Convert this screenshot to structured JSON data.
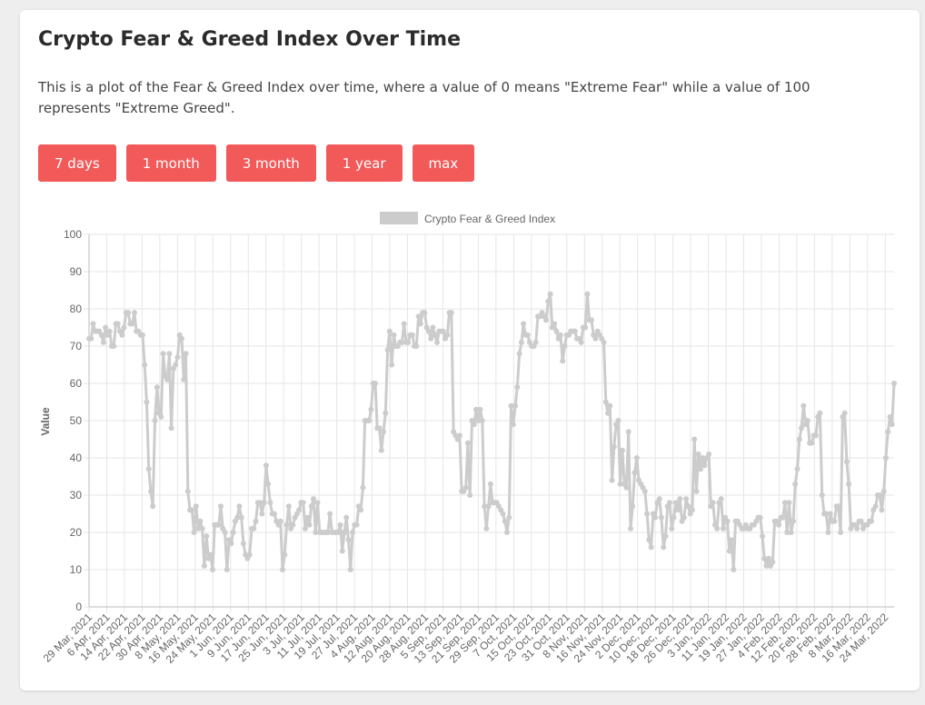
{
  "header": {
    "title": "Crypto Fear & Greed Index Over Time",
    "description": "This is a plot of the Fear & Greed Index over time, where a value of 0 means \"Extreme Fear\" while a value of 100 represents \"Extreme Greed\"."
  },
  "buttons": [
    {
      "label": "7 days"
    },
    {
      "label": "1 month"
    },
    {
      "label": "3 month"
    },
    {
      "label": "1 year"
    },
    {
      "label": "max"
    }
  ],
  "colors": {
    "button": "#f25a5a",
    "line": "#cccccc",
    "grid": "#e6e6e6"
  },
  "chart_data": {
    "type": "line",
    "title": "",
    "xlabel": "",
    "ylabel": "Value",
    "ylim": [
      0,
      100
    ],
    "yticks": [
      0,
      10,
      20,
      30,
      40,
      50,
      60,
      70,
      80,
      90,
      100
    ],
    "grid": true,
    "legend_position": "top-center",
    "x_tick_labels": [
      "29 Mar, 2021",
      "6 Apr, 2021",
      "14 Apr, 2021",
      "22 Apr, 2021",
      "30 Apr, 2021",
      "8 May, 2021",
      "16 May, 2021",
      "24 May, 2021",
      "1 Jun, 2021",
      "9 Jun, 2021",
      "17 Jun, 2021",
      "25 Jun, 2021",
      "3 Jul, 2021",
      "11 Jul, 2021",
      "19 Jul, 2021",
      "27 Jul, 2021",
      "4 Aug, 2021",
      "12 Aug, 2021",
      "20 Aug, 2021",
      "28 Aug, 2021",
      "5 Sep, 2021",
      "13 Sep, 2021",
      "21 Sep, 2021",
      "29 Sep, 2021",
      "7 Oct, 2021",
      "15 Oct, 2021",
      "23 Oct, 2021",
      "31 Oct, 2021",
      "8 Nov, 2021",
      "16 Nov, 2021",
      "24 Nov, 2021",
      "2 Dec, 2021",
      "10 Dec, 2021",
      "18 Dec, 2021",
      "26 Dec, 2021",
      "3 Jan, 2022",
      "11 Jan, 2022",
      "19 Jan, 2022",
      "27 Jan, 2022",
      "4 Feb, 2022",
      "12 Feb, 2022",
      "20 Feb, 2022",
      "28 Feb, 2022",
      "8 Mar, 2022",
      "16 Mar, 2022",
      "24 Mar, 2022"
    ],
    "series": [
      {
        "name": "Crypto Fear & Greed Index",
        "values": [
          72,
          72,
          76,
          74,
          74,
          74,
          73,
          71,
          75,
          73,
          74,
          70,
          70,
          76,
          76,
          74,
          73,
          75,
          79,
          79,
          76,
          76,
          79,
          74,
          74,
          73,
          73,
          65,
          55,
          37,
          31,
          27,
          50,
          59,
          52,
          51,
          68,
          62,
          61,
          68,
          48,
          64,
          65,
          67,
          73,
          72,
          61,
          68,
          31,
          26,
          26,
          20,
          27,
          21,
          23,
          21,
          11,
          19,
          13,
          14,
          10,
          22,
          22,
          22,
          27,
          21,
          20,
          10,
          18,
          17,
          20,
          23,
          24,
          27,
          24,
          17,
          14,
          13,
          14,
          21,
          21,
          23,
          28,
          28,
          25,
          28,
          38,
          33,
          28,
          25,
          25,
          23,
          22,
          23,
          10,
          14,
          22,
          27,
          21,
          22,
          24,
          25,
          26,
          28,
          28,
          21,
          24,
          22,
          27,
          29,
          20,
          28,
          20,
          20,
          20,
          20,
          20,
          25,
          20,
          20,
          20,
          20,
          22,
          15,
          20,
          24,
          18,
          10,
          20,
          22,
          22,
          27,
          26,
          32,
          50,
          50,
          50,
          53,
          60,
          60,
          48,
          48,
          42,
          47,
          52,
          69,
          74,
          65,
          73,
          70,
          70,
          71,
          71,
          76,
          71,
          71,
          73,
          73,
          70,
          70,
          78,
          76,
          79,
          79,
          75,
          74,
          72,
          75,
          73,
          71,
          74,
          74,
          74,
          72,
          73,
          79,
          79,
          47,
          46,
          45,
          46,
          31,
          31,
          32,
          44,
          30,
          50,
          49,
          53,
          50,
          53,
          50,
          27,
          21,
          27,
          33,
          28,
          28,
          28,
          27,
          26,
          25,
          23,
          20,
          24,
          54,
          49,
          54,
          59,
          68,
          71,
          76,
          73,
          73,
          71,
          70,
          70,
          71,
          78,
          78,
          79,
          78,
          77,
          82,
          84,
          75,
          76,
          74,
          72,
          73,
          66,
          70,
          73,
          73,
          74,
          74,
          74,
          72,
          72,
          71,
          75,
          75,
          84,
          77,
          77,
          73,
          72,
          74,
          73,
          72,
          71,
          55,
          52,
          54,
          34,
          43,
          49,
          50,
          33,
          42,
          33,
          32,
          47,
          21,
          27,
          36,
          40,
          34,
          33,
          32,
          31,
          25,
          18,
          16,
          25,
          24,
          28,
          29,
          24,
          16,
          19,
          27,
          28,
          21,
          24,
          28,
          26,
          29,
          23,
          24,
          29,
          27,
          25,
          26,
          45,
          31,
          41,
          37,
          40,
          38,
          40,
          41,
          27,
          28,
          22,
          21,
          28,
          29,
          21,
          24,
          23,
          15,
          18,
          10,
          23,
          23,
          22,
          21,
          21,
          22,
          21,
          21,
          22,
          22,
          23,
          24,
          24,
          19,
          13,
          11,
          13,
          11,
          12,
          23,
          23,
          22,
          24,
          24,
          28,
          20,
          28,
          20,
          23,
          33,
          37,
          45,
          48,
          54,
          49,
          50,
          44,
          44,
          46,
          46,
          51,
          52,
          30,
          25,
          25,
          20,
          25,
          23,
          23,
          27,
          27,
          20,
          51,
          52,
          39,
          33,
          21,
          22,
          22,
          21,
          23,
          23,
          21,
          22,
          22,
          23,
          23,
          26,
          27,
          30,
          30,
          26,
          31,
          40,
          47,
          51,
          49,
          60
        ]
      }
    ]
  }
}
